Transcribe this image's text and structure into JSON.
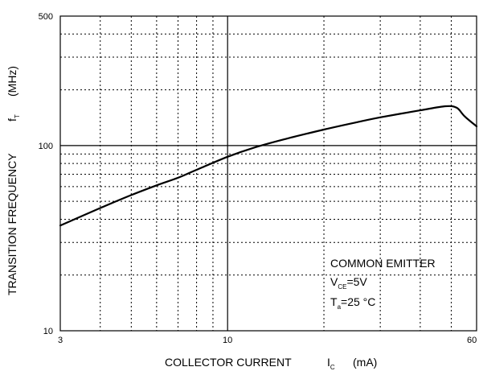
{
  "chart_data": {
    "type": "line",
    "xscale": "log",
    "yscale": "log",
    "xlim": [
      3,
      60
    ],
    "ylim": [
      10,
      500
    ],
    "grid": true,
    "xlabel": {
      "main": "COLLECTOR CURRENT",
      "symbol": "I",
      "sub": "C",
      "unit": "(mA)"
    },
    "ylabel": {
      "main": "TRANSITION FREQUENCY",
      "symbol": "f",
      "sub": "T",
      "unit": "(MHz)"
    },
    "xticks": [
      "3",
      "10",
      "60"
    ],
    "yticks": [
      "10",
      "100",
      "500"
    ],
    "annotation": {
      "line1": "COMMON EMITTER",
      "line2_sym": "V",
      "line2_sub": "CE",
      "line2_val": "=5V",
      "line3_sym": "T",
      "line3_sub": "a",
      "line3_val": "=25 °C"
    },
    "series": [
      {
        "x": [
          3,
          4,
          5,
          6,
          7,
          8,
          10,
          12,
          15,
          20,
          25,
          30,
          40,
          48,
          52,
          55,
          60
        ],
        "y": [
          37,
          46,
          54,
          61,
          67,
          74,
          87,
          97,
          108,
          122,
          133,
          142,
          155,
          163,
          160,
          144,
          127
        ]
      }
    ]
  }
}
